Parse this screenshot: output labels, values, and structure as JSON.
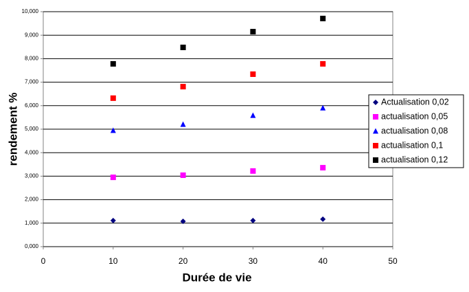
{
  "chart_data": {
    "type": "scatter",
    "xlabel": "Durée de vie",
    "ylabel": "rendement %",
    "xlim": [
      0,
      50
    ],
    "xticks": [
      0,
      10,
      20,
      30,
      40,
      50
    ],
    "ylim": [
      0,
      10
    ],
    "yticks": [
      {
        "value": 0,
        "label": "0,000"
      },
      {
        "value": 1,
        "label": "1,000"
      },
      {
        "value": 2,
        "label": "2,000"
      },
      {
        "value": 3,
        "label": "3,000"
      },
      {
        "value": 4,
        "label": "4,000"
      },
      {
        "value": 5,
        "label": "5,000"
      },
      {
        "value": 6,
        "label": "6,000"
      },
      {
        "value": 7,
        "label": "7,000"
      },
      {
        "value": 8,
        "label": "8,000"
      },
      {
        "value": 9,
        "label": "9,000"
      },
      {
        "value": 10,
        "label": "10,000"
      }
    ],
    "grid": true,
    "legend": "right",
    "x": [
      10,
      20,
      30,
      40
    ],
    "series": [
      {
        "name": "Actualisation 0,02",
        "color": "#000080",
        "marker": "diamond",
        "values": [
          1.11,
          1.08,
          1.11,
          1.17
        ]
      },
      {
        "name": "actualisation 0,05",
        "color": "#ff00ff",
        "marker": "square",
        "values": [
          2.95,
          3.04,
          3.22,
          3.36
        ]
      },
      {
        "name": "actualisation 0,08",
        "color": "#0000ff",
        "marker": "triangle",
        "values": [
          4.94,
          5.2,
          5.58,
          5.9
        ]
      },
      {
        "name": "actualisation 0,1",
        "color": "#ff0000",
        "marker": "square",
        "values": [
          6.32,
          6.81,
          7.34,
          7.78
        ]
      },
      {
        "name": "actualisation 0,12",
        "color": "#000000",
        "marker": "square",
        "values": [
          7.78,
          8.48,
          9.15,
          9.71
        ]
      }
    ]
  }
}
